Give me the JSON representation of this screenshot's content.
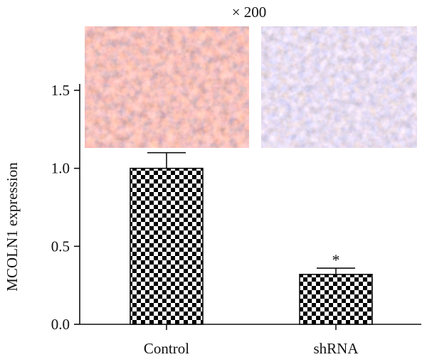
{
  "chart_data": {
    "type": "bar",
    "categories": [
      "Control",
      "shRNA"
    ],
    "values": [
      1.0,
      0.32
    ],
    "errors": [
      0.1,
      0.04
    ],
    "significance": [
      "",
      "*"
    ],
    "ylabel": "MCOLN1 expression",
    "xlabel": "",
    "ylim": [
      0,
      1.8
    ],
    "yticks": [
      "0.0",
      "0.5",
      "1.0",
      "1.5"
    ],
    "bar_pattern": "checkerboard",
    "bar_colors": [
      "#000000",
      "#ffffff"
    ],
    "grid": false
  },
  "inset": {
    "magnification": "× 200",
    "images": [
      "control-ihc-micrograph",
      "shrna-ihc-micrograph"
    ],
    "stain_colors": [
      "#b8733f",
      "#8c86b4"
    ]
  }
}
